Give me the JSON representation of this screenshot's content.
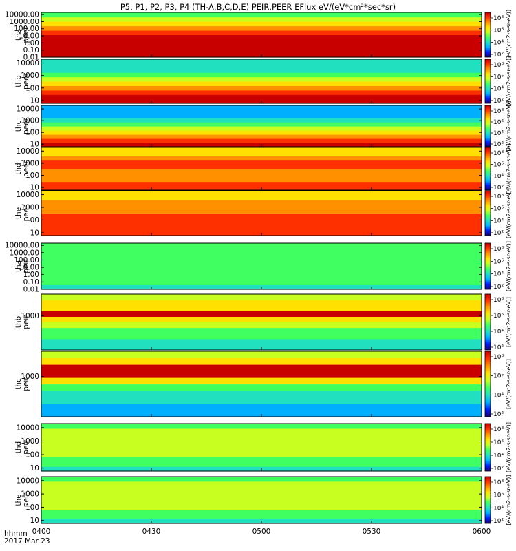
{
  "title": "P5, P1, P2, P3, P4 (TH-A,B,C,D,E) PEIR,PEER EFlux eV/(eV*cm²*sec*sr)",
  "x_axis": {
    "ticks": [
      "0400",
      "0430",
      "0500",
      "0530",
      "0600"
    ],
    "tick_minutes": [
      0,
      30,
      60,
      90,
      120
    ],
    "range_minutes": [
      0,
      120
    ],
    "row_labels": [
      "hhmm",
      "2017 Mar 23"
    ]
  },
  "colorbar": {
    "unit_label": "[eV/(cm2-s-sr-eV)]",
    "tick_labels": [
      "10⁸",
      "10⁶",
      "10⁴",
      "10²"
    ],
    "colors": [
      "#1a0070",
      "#0020ff",
      "#00b0ff",
      "#20e0c0",
      "#40ff60",
      "#c8ff20",
      "#ffe000",
      "#ff9000",
      "#ff3000",
      "#c80000"
    ]
  },
  "chart_data": [
    {
      "type": "heatmap",
      "probe": "tha",
      "species": "peer",
      "ylabel": "tha peer",
      "yscale": "log",
      "y_range": [
        0.01,
        20000
      ],
      "ytick_labels": [
        "10000.00",
        "1000.00",
        "100.00",
        "10.00",
        "1.00",
        "0.10",
        "0.01"
      ],
      "ytick_values": [
        10000,
        1000,
        100,
        10,
        1,
        0.1,
        0.01
      ]
    },
    {
      "type": "heatmap",
      "probe": "thb",
      "species": "peer",
      "ylabel": "thb peer",
      "yscale": "log",
      "y_range": [
        6,
        20000
      ],
      "ytick_labels": [
        "10000",
        "1000",
        "100",
        "10"
      ],
      "ytick_values": [
        10000,
        1000,
        100,
        10
      ]
    },
    {
      "type": "heatmap",
      "probe": "thc",
      "species": "peer",
      "ylabel": "thc peer",
      "yscale": "log",
      "y_range": [
        6,
        20000
      ],
      "ytick_labels": [
        "10000",
        "1000",
        "100",
        "10"
      ],
      "ytick_values": [
        10000,
        1000,
        100,
        10
      ]
    },
    {
      "type": "heatmap",
      "probe": "thd",
      "species": "peer",
      "ylabel": "thd peer",
      "yscale": "log",
      "y_range": [
        6,
        20000
      ],
      "ytick_labels": [
        "10000",
        "1000",
        "100",
        "10"
      ],
      "ytick_values": [
        10000,
        1000,
        100,
        10
      ]
    },
    {
      "type": "heatmap",
      "probe": "the",
      "species": "peer",
      "ylabel": "the peer",
      "yscale": "log",
      "y_range": [
        6,
        20000
      ],
      "ytick_labels": [
        "10000",
        "1000",
        "100",
        "10"
      ],
      "ytick_values": [
        10000,
        1000,
        100,
        10
      ]
    },
    {
      "type": "heatmap",
      "probe": "tha",
      "species": "peir",
      "ylabel": "tha peir",
      "yscale": "log",
      "y_range": [
        0.01,
        20000
      ],
      "ytick_labels": [
        "10000.00",
        "1000.00",
        "100.00",
        "10.00",
        "1.00",
        "0.10",
        "0.01"
      ],
      "ytick_values": [
        10000,
        1000,
        100,
        10,
        1,
        0.1,
        0.01
      ]
    },
    {
      "type": "heatmap",
      "probe": "thb",
      "species": "peir",
      "ylabel": "thb peir",
      "yscale": "log",
      "y_range": [
        6,
        25000
      ],
      "ytick_labels": [
        "1000"
      ],
      "ytick_values": [
        1000
      ]
    },
    {
      "type": "heatmap",
      "probe": "thc",
      "species": "peir",
      "ylabel": "thc peir",
      "yscale": "log",
      "y_range": [
        6,
        25000
      ],
      "ytick_labels": [
        "1000"
      ],
      "ytick_values": [
        1000
      ]
    },
    {
      "type": "heatmap",
      "probe": "thd",
      "species": "peir",
      "ylabel": "thd peir",
      "yscale": "log",
      "y_range": [
        6,
        20000
      ],
      "ytick_labels": [
        "10000",
        "1000",
        "100",
        "10"
      ],
      "ytick_values": [
        10000,
        1000,
        100,
        10
      ]
    },
    {
      "type": "heatmap",
      "probe": "the",
      "species": "peir",
      "ylabel": "the peir",
      "yscale": "log",
      "y_range": [
        6,
        20000
      ],
      "ytick_labels": [
        "10000",
        "1000",
        "100",
        "10"
      ],
      "ytick_values": [
        10000,
        1000,
        100,
        10
      ]
    }
  ]
}
